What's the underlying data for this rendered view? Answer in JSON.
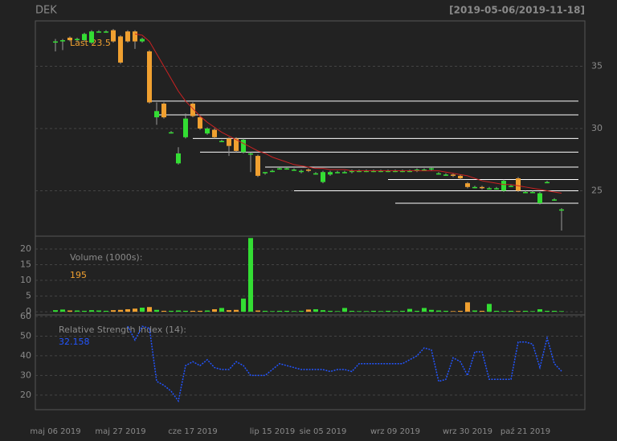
{
  "chart_data": [
    {
      "type": "candlestick",
      "title": "DEK",
      "subtitle": "[2019-05-06/2019-11-18]",
      "categories": [
        "maj 06 2019",
        null,
        null,
        null,
        null,
        null,
        null,
        null,
        null,
        "maj 27 2019",
        null,
        null,
        null,
        null,
        null,
        null,
        null,
        null,
        null,
        "cze 17 2019",
        null,
        null,
        null,
        null,
        null,
        null,
        null,
        null,
        null,
        null,
        "lip 15 2019",
        null,
        null,
        null,
        null,
        null,
        null,
        "sie 05 2019",
        null,
        null,
        null,
        null,
        null,
        null,
        null,
        null,
        null,
        "wrz 09 2019",
        null,
        null,
        null,
        null,
        null,
        null,
        null,
        null,
        null,
        "wrz 30 2019",
        null,
        null,
        null,
        null,
        null,
        null,
        null,
        "paź 21 2019",
        null,
        null,
        null,
        null,
        null
      ],
      "open": [
        37.0,
        37.0,
        37.3,
        37.1,
        37.1,
        36.9,
        37.8,
        37.8,
        37.9,
        37.4,
        37.8,
        37.8,
        37.0,
        36.2,
        30.9,
        32.0,
        29.7,
        27.2,
        29.3,
        32.0,
        30.9,
        29.6,
        29.9,
        29.0,
        29.2,
        29.2,
        28.1,
        28.0,
        27.8,
        26.4,
        26.6,
        26.8,
        26.8,
        26.7,
        26.5,
        26.7,
        26.4,
        25.7,
        26.3,
        26.5,
        26.5,
        26.5,
        26.6,
        26.6,
        26.6,
        26.6,
        26.6,
        26.6,
        26.6,
        26.6,
        26.6,
        26.7,
        26.7,
        26.4,
        26.3,
        26.3,
        26.2,
        25.6,
        25.3,
        25.3,
        25.2,
        25.2,
        25.0,
        25.4,
        26.0,
        24.9,
        24.9,
        24.0,
        25.7,
        24.3,
        23.5
      ],
      "high": [
        37.2,
        37.2,
        37.4,
        37.3,
        37.7,
        37.9,
        37.9,
        37.9,
        38.0,
        37.5,
        37.9,
        37.9,
        37.3,
        36.3,
        32.1,
        32.1,
        29.8,
        28.5,
        31.2,
        32.1,
        31.0,
        30.1,
        30.0,
        29.1,
        29.3,
        29.3,
        29.2,
        28.1,
        27.9,
        26.5,
        26.7,
        26.9,
        26.9,
        26.8,
        26.7,
        26.8,
        26.5,
        26.6,
        26.6,
        26.6,
        26.6,
        26.7,
        26.7,
        26.7,
        26.7,
        26.7,
        26.7,
        26.7,
        26.7,
        26.7,
        26.8,
        26.8,
        26.9,
        26.5,
        26.4,
        26.4,
        26.3,
        25.7,
        25.4,
        25.4,
        25.3,
        25.3,
        25.9,
        25.5,
        26.1,
        25.0,
        25.0,
        24.9,
        25.8,
        24.4,
        23.6
      ],
      "low": [
        36.2,
        36.3,
        37.0,
        37.0,
        37.0,
        36.8,
        37.7,
        37.7,
        36.9,
        35.2,
        36.9,
        36.4,
        36.9,
        32.0,
        30.3,
        30.8,
        29.6,
        27.1,
        29.2,
        30.9,
        29.9,
        29.5,
        29.2,
        28.9,
        27.8,
        28.1,
        28.0,
        26.5,
        26.1,
        26.3,
        26.5,
        26.7,
        26.7,
        26.6,
        26.4,
        26.5,
        26.3,
        25.6,
        26.2,
        26.4,
        26.4,
        26.4,
        26.5,
        26.5,
        26.5,
        26.5,
        26.5,
        26.5,
        26.5,
        26.5,
        26.5,
        26.6,
        26.6,
        26.3,
        26.2,
        26.1,
        25.9,
        25.2,
        25.2,
        25.1,
        25.1,
        25.1,
        24.9,
        25.3,
        24.9,
        24.8,
        24.8,
        23.9,
        25.6,
        24.2,
        21.8
      ],
      "close": [
        37.0,
        37.1,
        37.1,
        37.2,
        37.6,
        37.8,
        37.8,
        37.8,
        37.0,
        35.3,
        37.0,
        37.0,
        37.2,
        32.1,
        31.4,
        30.9,
        29.7,
        28.0,
        30.8,
        31.0,
        30.0,
        30.0,
        29.3,
        29.0,
        28.6,
        28.2,
        29.1,
        28.0,
        26.2,
        26.5,
        26.6,
        26.8,
        26.8,
        26.7,
        26.6,
        26.6,
        26.4,
        26.5,
        26.5,
        26.5,
        26.5,
        26.6,
        26.6,
        26.6,
        26.6,
        26.6,
        26.6,
        26.6,
        26.6,
        26.6,
        26.7,
        26.7,
        26.8,
        26.4,
        26.3,
        26.2,
        26.0,
        25.3,
        25.3,
        25.2,
        25.2,
        25.2,
        25.8,
        25.4,
        25.0,
        24.9,
        24.9,
        24.8,
        25.7,
        24.3,
        23.5
      ],
      "ma": [
        null,
        null,
        null,
        null,
        null,
        null,
        null,
        null,
        null,
        null,
        null,
        37.6,
        37.5,
        37.0,
        36.0,
        35.0,
        34.0,
        33.0,
        32.2,
        31.6,
        31.0,
        30.5,
        30.1,
        29.7,
        29.4,
        29.1,
        28.8,
        28.5,
        28.2,
        28.0,
        27.7,
        27.5,
        27.3,
        27.1,
        27.0,
        26.9,
        26.8,
        26.8,
        26.7,
        26.7,
        26.7,
        26.6,
        26.6,
        26.6,
        26.6,
        26.6,
        26.6,
        26.6,
        26.6,
        26.6,
        26.6,
        26.6,
        26.6,
        26.6,
        26.5,
        26.4,
        26.3,
        26.2,
        26.0,
        25.8,
        25.7,
        25.6,
        25.5,
        25.5,
        25.4,
        25.3,
        25.2,
        25.1,
        25.0,
        24.9,
        24.8
      ],
      "ma_color": "#cc2222",
      "levels": [
        32.2,
        31.1,
        29.2,
        28.1,
        26.9,
        25.9,
        25.0,
        24.0
      ],
      "level_starts": [
        13,
        14,
        19,
        20,
        29,
        46,
        33,
        47
      ],
      "up_color": "#33dd33",
      "down_color": "#f0a030",
      "last_label": "Last",
      "ylim": [
        21.35,
        38.65
      ],
      "yticks": [
        25,
        30,
        35
      ],
      "grid": true
    },
    {
      "type": "bar",
      "title": "Volume (1000s):",
      "last_label": "195",
      "values": [
        0.5,
        0.7,
        0.4,
        0.4,
        0.3,
        0.5,
        0.4,
        0.3,
        0.5,
        0.6,
        0.8,
        1.0,
        1.3,
        1.5,
        0.6,
        0.3,
        0.3,
        0.4,
        0.3,
        0.3,
        0.3,
        0.4,
        0.8,
        1.2,
        0.5,
        0.6,
        4.2,
        23.5,
        0.4,
        0.3,
        0.2,
        0.3,
        0.3,
        0.2,
        0.3,
        0.7,
        0.8,
        0.5,
        0.3,
        0.2,
        1.2,
        0.3,
        0.2,
        0.2,
        0.3,
        0.2,
        0.3,
        0.2,
        0.3,
        0.9,
        0.3,
        1.2,
        0.6,
        0.4,
        0.3,
        0.2,
        0.3,
        3.0,
        0.4,
        0.3,
        2.5,
        0.3,
        0.2,
        0.3,
        0.2,
        0.3,
        0.2,
        0.8,
        0.3,
        0.3,
        0.195
      ],
      "ylim": [
        -1,
        24.1
      ],
      "yticks": [
        0,
        5,
        10,
        15,
        20
      ],
      "grid": true
    },
    {
      "type": "line",
      "title": "Relative Strength Index (14):",
      "color": "#2255ff",
      "values": [
        null,
        null,
        null,
        null,
        null,
        null,
        null,
        null,
        null,
        null,
        55,
        48,
        55,
        54,
        27,
        25,
        22,
        17,
        35,
        37,
        35,
        38,
        34,
        33,
        33,
        37,
        35,
        30,
        30,
        30,
        33,
        36,
        35,
        34,
        33,
        33,
        33,
        33,
        32,
        33,
        33,
        32,
        36,
        36,
        36,
        36,
        36,
        36,
        36,
        38,
        40,
        44,
        43,
        27,
        28,
        39,
        37,
        30,
        42,
        42,
        28,
        28,
        28,
        28,
        47,
        47,
        46,
        34,
        49,
        36,
        32.158
      ],
      "ylim": [
        12.6,
        60.8
      ],
      "yticks": [
        20,
        30,
        40,
        50,
        60
      ],
      "grid": true
    }
  ]
}
